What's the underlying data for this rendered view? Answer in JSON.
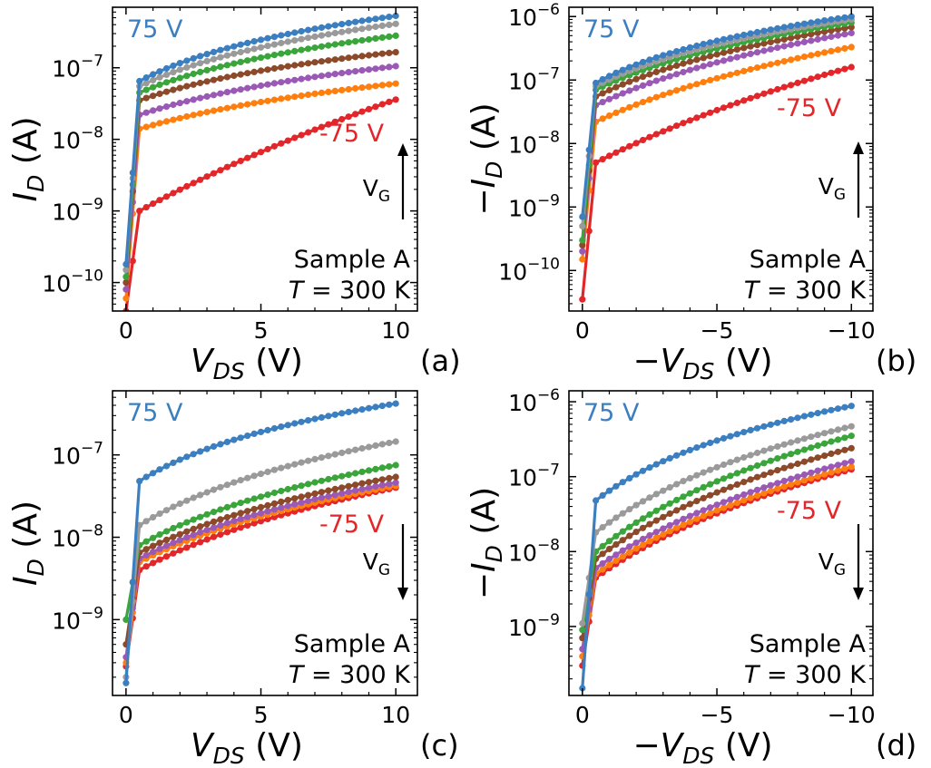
{
  "chart_data": [
    {
      "panel": "(a)",
      "type": "line",
      "xlabel": {
        "prefix": "",
        "main": "V",
        "sub": "DS",
        "unit": "(V)"
      },
      "ylabel": {
        "prefix": "",
        "main": "I",
        "sub": "D",
        "unit": "(A)"
      },
      "xlim": [
        -0.5,
        10.8
      ],
      "ylim": [
        4e-11,
        7e-07
      ],
      "yscale": "log",
      "xticks": [
        {
          "v": 0,
          "label": "0"
        },
        {
          "v": 5,
          "label": "5"
        },
        {
          "v": 10,
          "label": "10"
        }
      ],
      "yticks": [
        {
          "v": 1e-10,
          "exp": "−10"
        },
        {
          "v": 1e-09,
          "exp": "−9"
        },
        {
          "v": 1e-08,
          "exp": "−8"
        },
        {
          "v": 1e-07,
          "exp": "−7"
        }
      ],
      "annotations": {
        "top": "75 V",
        "bottom": "-75 V",
        "vg_main": "V",
        "vg_sub": "G",
        "vg_direction": "up",
        "sample": "Sample A",
        "temp_var": "T",
        "temp_rest": " = 300 K"
      },
      "series": [
        {
          "color": "#e3262a",
          "y0": 4e-11,
          "y1": 1e-09,
          "end": 3.6e-08,
          "knee": 0.7,
          "c": 1.8
        },
        {
          "color": "#ff7f0e",
          "y0": 6e-11,
          "y1": 1.4e-08,
          "end": 6e-08,
          "knee": 0.6,
          "c": 0.6
        },
        {
          "color": "#9b59b6",
          "y0": 8e-11,
          "y1": 2.2e-08,
          "end": 1.05e-07,
          "knee": 0.55,
          "c": 0.55
        },
        {
          "color": "#8c4a2a",
          "y0": 1e-10,
          "y1": 3.5e-08,
          "end": 1.65e-07,
          "knee": 0.55,
          "c": 0.45
        },
        {
          "color": "#3aa53a",
          "y0": 1.2e-10,
          "y1": 4.5e-08,
          "end": 2.8e-07,
          "knee": 0.5,
          "c": 0.45
        },
        {
          "color": "#9a9a9a",
          "y0": 1.5e-10,
          "y1": 5.5e-08,
          "end": 4.1e-07,
          "knee": 0.5,
          "c": 0.4
        },
        {
          "color": "#3b7fc0",
          "y0": 1.8e-10,
          "y1": 6.5e-08,
          "end": 5.3e-07,
          "knee": 0.5,
          "c": 0.35
        }
      ]
    },
    {
      "panel": "(b)",
      "type": "line",
      "xlabel": {
        "prefix": "−",
        "main": "V",
        "sub": "DS",
        "unit": "(V)"
      },
      "ylabel": {
        "prefix": "−",
        "main": "I",
        "sub": "D",
        "unit": "(A)"
      },
      "xlim": [
        0.5,
        -10.8
      ],
      "ylim": [
        2.3e-11,
        1.4e-06
      ],
      "yscale": "log",
      "xticks": [
        {
          "v": 0,
          "label": "0"
        },
        {
          "v": -5,
          "label": "−5"
        },
        {
          "v": -10,
          "label": "−10"
        }
      ],
      "yticks": [
        {
          "v": 1e-10,
          "exp": "−10"
        },
        {
          "v": 1e-09,
          "exp": "−9"
        },
        {
          "v": 1e-08,
          "exp": "−8"
        },
        {
          "v": 1e-07,
          "exp": "−7"
        },
        {
          "v": 1e-06,
          "exp": "−6"
        }
      ],
      "annotations": {
        "top": "75 V",
        "bottom": "-75 V",
        "vg_main": "V",
        "vg_sub": "G",
        "vg_direction": "up",
        "sample": "Sample A",
        "temp_var": "T",
        "temp_rest": " = 300 K"
      },
      "series": [
        {
          "color": "#e3262a",
          "y0": 3.5e-11,
          "y1": 5e-09,
          "end": 1.6e-07,
          "knee": 0.8,
          "c": 1.2
        },
        {
          "color": "#ff7f0e",
          "y0": 1.5e-10,
          "y1": 2.2e-08,
          "end": 3.3e-07,
          "knee": 0.6,
          "c": 0.7
        },
        {
          "color": "#9b59b6",
          "y0": 2e-10,
          "y1": 4e-08,
          "end": 5.5e-07,
          "knee": 0.55,
          "c": 0.6
        },
        {
          "color": "#8c4a2a",
          "y0": 2.5e-10,
          "y1": 5.5e-08,
          "end": 6.8e-07,
          "knee": 0.55,
          "c": 0.5
        },
        {
          "color": "#3aa53a",
          "y0": 3e-10,
          "y1": 7e-08,
          "end": 8e-07,
          "knee": 0.5,
          "c": 0.45
        },
        {
          "color": "#9a9a9a",
          "y0": 5e-10,
          "y1": 8e-08,
          "end": 9e-07,
          "knee": 0.5,
          "c": 0.4
        },
        {
          "color": "#3b7fc0",
          "y0": 7e-10,
          "y1": 9e-08,
          "end": 1e-06,
          "knee": 0.5,
          "c": 0.35
        }
      ]
    },
    {
      "panel": "(c)",
      "type": "line",
      "xlabel": {
        "prefix": "",
        "main": "V",
        "sub": "DS",
        "unit": "(V)"
      },
      "ylabel": {
        "prefix": "",
        "main": "I",
        "sub": "D",
        "unit": "(A)"
      },
      "xlim": [
        -0.5,
        10.8
      ],
      "ylim": [
        1.2e-10,
        6e-07
      ],
      "yscale": "log",
      "xticks": [
        {
          "v": 0,
          "label": "0"
        },
        {
          "v": 5,
          "label": "5"
        },
        {
          "v": 10,
          "label": "10"
        }
      ],
      "yticks": [
        {
          "v": 1e-09,
          "exp": "−9"
        },
        {
          "v": 1e-08,
          "exp": "−8"
        },
        {
          "v": 1e-07,
          "exp": "−7"
        }
      ],
      "annotations": {
        "top": "75 V",
        "bottom": "-75 V",
        "vg_main": "V",
        "vg_sub": "G",
        "vg_direction": "down",
        "sample": "Sample A",
        "temp_var": "T",
        "temp_rest": " = 300 K"
      },
      "series": [
        {
          "color": "#e3262a",
          "y0": 2.7e-10,
          "y1": 4e-09,
          "end": 4e-08,
          "knee": 0.7,
          "c": 0.6
        },
        {
          "color": "#ff7f0e",
          "y0": 3e-10,
          "y1": 5e-09,
          "end": 4.2e-08,
          "knee": 0.65,
          "c": 0.55
        },
        {
          "color": "#9b59b6",
          "y0": 3.5e-10,
          "y1": 5.5e-09,
          "end": 4.6e-08,
          "knee": 0.65,
          "c": 0.55
        },
        {
          "color": "#8c4a2a",
          "y0": 5e-10,
          "y1": 6.5e-09,
          "end": 5.4e-08,
          "knee": 0.6,
          "c": 0.55
        },
        {
          "color": "#3aa53a",
          "y0": 1e-09,
          "y1": 8e-09,
          "end": 7.5e-08,
          "knee": 0.6,
          "c": 0.5
        },
        {
          "color": "#9a9a9a",
          "y0": 2e-10,
          "y1": 1.4e-08,
          "end": 1.45e-07,
          "knee": 0.55,
          "c": 0.45
        },
        {
          "color": "#3b7fc0",
          "y0": 1.7e-10,
          "y1": 4.8e-08,
          "end": 4.2e-07,
          "knee": 0.5,
          "c": 0.35
        }
      ]
    },
    {
      "panel": "(d)",
      "type": "line",
      "xlabel": {
        "prefix": "−",
        "main": "V",
        "sub": "DS",
        "unit": "(V)"
      },
      "ylabel": {
        "prefix": "−",
        "main": "I",
        "sub": "D",
        "unit": "(A)"
      },
      "xlim": [
        0.5,
        -10.8
      ],
      "ylim": [
        1.2e-10,
        1.4e-06
      ],
      "yscale": "log",
      "xticks": [
        {
          "v": 0,
          "label": "0"
        },
        {
          "v": -5,
          "label": "−5"
        },
        {
          "v": -10,
          "label": "−10"
        }
      ],
      "yticks": [
        {
          "v": 1e-09,
          "exp": "−9"
        },
        {
          "v": 1e-08,
          "exp": "−8"
        },
        {
          "v": 1e-07,
          "exp": "−7"
        },
        {
          "v": 1e-06,
          "exp": "−6"
        }
      ],
      "annotations": {
        "top": "75 V",
        "bottom": "-75 V",
        "vg_main": "V",
        "vg_sub": "G",
        "vg_direction": "down",
        "sample": "Sample A",
        "temp_var": "T",
        "temp_rest": " = 300 K"
      },
      "series": [
        {
          "color": "#e3262a",
          "y0": 3e-10,
          "y1": 4.5e-09,
          "end": 1.25e-07,
          "knee": 0.7,
          "c": 0.6
        },
        {
          "color": "#ff7f0e",
          "y0": 4e-10,
          "y1": 5e-09,
          "end": 1.35e-07,
          "knee": 0.65,
          "c": 0.6
        },
        {
          "color": "#9b59b6",
          "y0": 5e-10,
          "y1": 6e-09,
          "end": 1.6e-07,
          "knee": 0.65,
          "c": 0.6
        },
        {
          "color": "#8c4a2a",
          "y0": 7e-10,
          "y1": 8e-09,
          "end": 2.4e-07,
          "knee": 0.6,
          "c": 0.55
        },
        {
          "color": "#3aa53a",
          "y0": 9e-10,
          "y1": 1e-08,
          "end": 3.5e-07,
          "knee": 0.6,
          "c": 0.5
        },
        {
          "color": "#9a9a9a",
          "y0": 1.1e-09,
          "y1": 1.8e-08,
          "end": 4.7e-07,
          "knee": 0.55,
          "c": 0.45
        },
        {
          "color": "#3b7fc0",
          "y0": 1.5e-10,
          "y1": 4.8e-08,
          "end": 8.8e-07,
          "knee": 0.5,
          "c": 0.35
        }
      ]
    }
  ]
}
